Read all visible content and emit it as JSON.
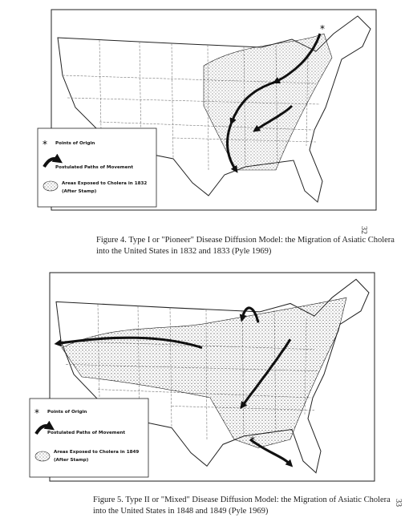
{
  "figures": [
    {
      "legend": {
        "origin": "Points of Origin",
        "paths": "Postulated Paths of Movement",
        "areas": "Areas Exposed to Cholera in 1832",
        "source": "(After Stamp)"
      },
      "caption": [
        "Figure 4.  Type I or \"Pioneer\" Disease Diffusion Model: the Migration of Asiatic Cholera",
        "into the United States in 1832 and 1833 (Pyle 1969)"
      ],
      "page_number": "32"
    },
    {
      "legend": {
        "origin": "Points of Origin",
        "paths": "Postulated Paths of Movement",
        "areas": "Areas Exposed to Cholera in 1849",
        "source": "(After Stamp)"
      },
      "caption": [
        "Figure 5.  Type II or \"Mixed\" Disease Diffusion Model: the Migration of Asiatic Cholera",
        "into the United States in 1848 and 1849 (Pyle 1969)"
      ],
      "page_number": "33"
    }
  ]
}
